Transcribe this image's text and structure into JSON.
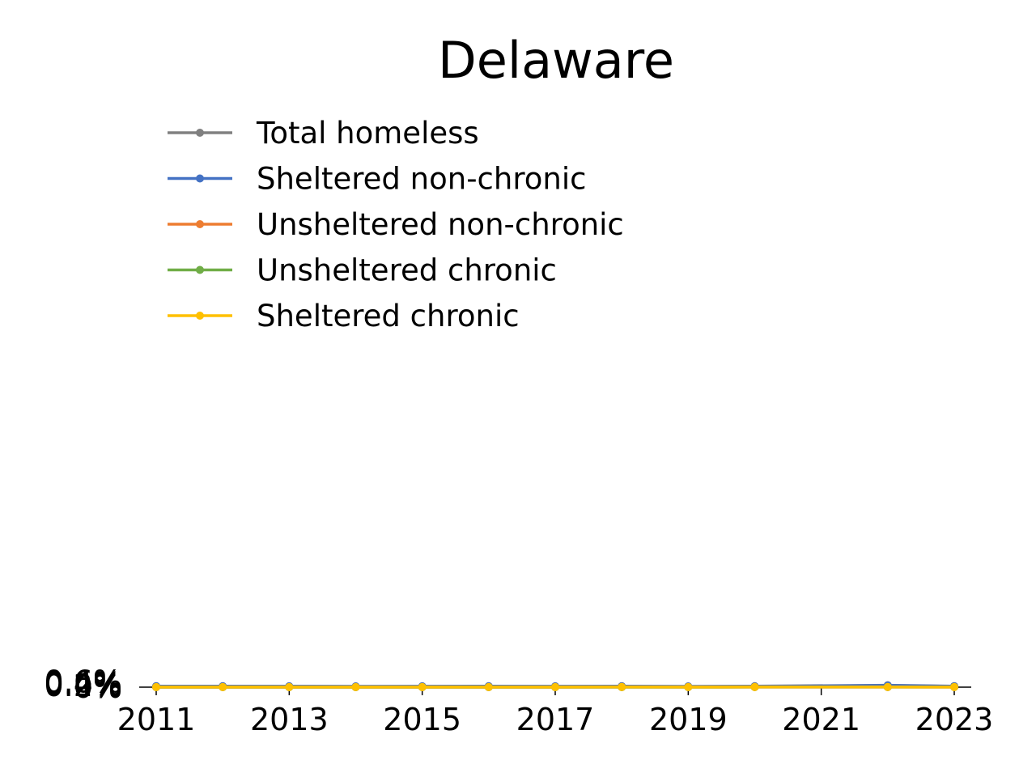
{
  "chart_data": {
    "type": "line",
    "title": "Delaware",
    "xlabel": "",
    "ylabel": "",
    "x": [
      2011,
      2012,
      2013,
      2014,
      2015,
      2016,
      2017,
      2018,
      2019,
      2020,
      2022,
      2023
    ],
    "x_ticks": [
      "2011",
      "2013",
      "2015",
      "2017",
      "2019",
      "2021",
      "2023"
    ],
    "y_ticks": [
      "0%",
      "0.2%",
      "0.4%",
      "0.6%"
    ],
    "xlim": [
      2011,
      2023
    ],
    "ylim": [
      0,
      0.6
    ],
    "grid": false,
    "legend_position": "top-left",
    "series": [
      {
        "name": "Total homeless",
        "color": "#808080",
        "values": [
          0.114,
          0.11,
          0.102,
          0.097,
          0.101,
          0.112,
          0.103,
          0.111,
          0.095,
          0.117,
          0.233,
          0.12
        ]
      },
      {
        "name": "Sheltered non-chronic",
        "color": "#4472C4",
        "values": [
          0.105,
          0.098,
          0.094,
          0.084,
          0.089,
          0.099,
          0.087,
          0.085,
          0.071,
          0.081,
          0.2,
          0.091
        ]
      },
      {
        "name": "Unsheltered non-chronic",
        "color": "#ED7D31",
        "values": [
          0.002,
          0.002,
          0.002,
          0.003,
          0.003,
          0.004,
          0.003,
          0.008,
          0.006,
          0.009,
          0.009,
          0.01
        ]
      },
      {
        "name": "Unsheltered chronic",
        "color": "#70AD47",
        "values": [
          0.001,
          0.001,
          0.001,
          0.002,
          0.002,
          0.002,
          0.003,
          0.004,
          0.004,
          0.005,
          0.005,
          0.008
        ]
      },
      {
        "name": "Sheltered chronic",
        "color": "#FFC000",
        "values": [
          0.006,
          0.009,
          0.007,
          0.008,
          0.007,
          0.007,
          0.01,
          0.017,
          0.013,
          0.021,
          0.016,
          0.008
        ]
      }
    ]
  }
}
